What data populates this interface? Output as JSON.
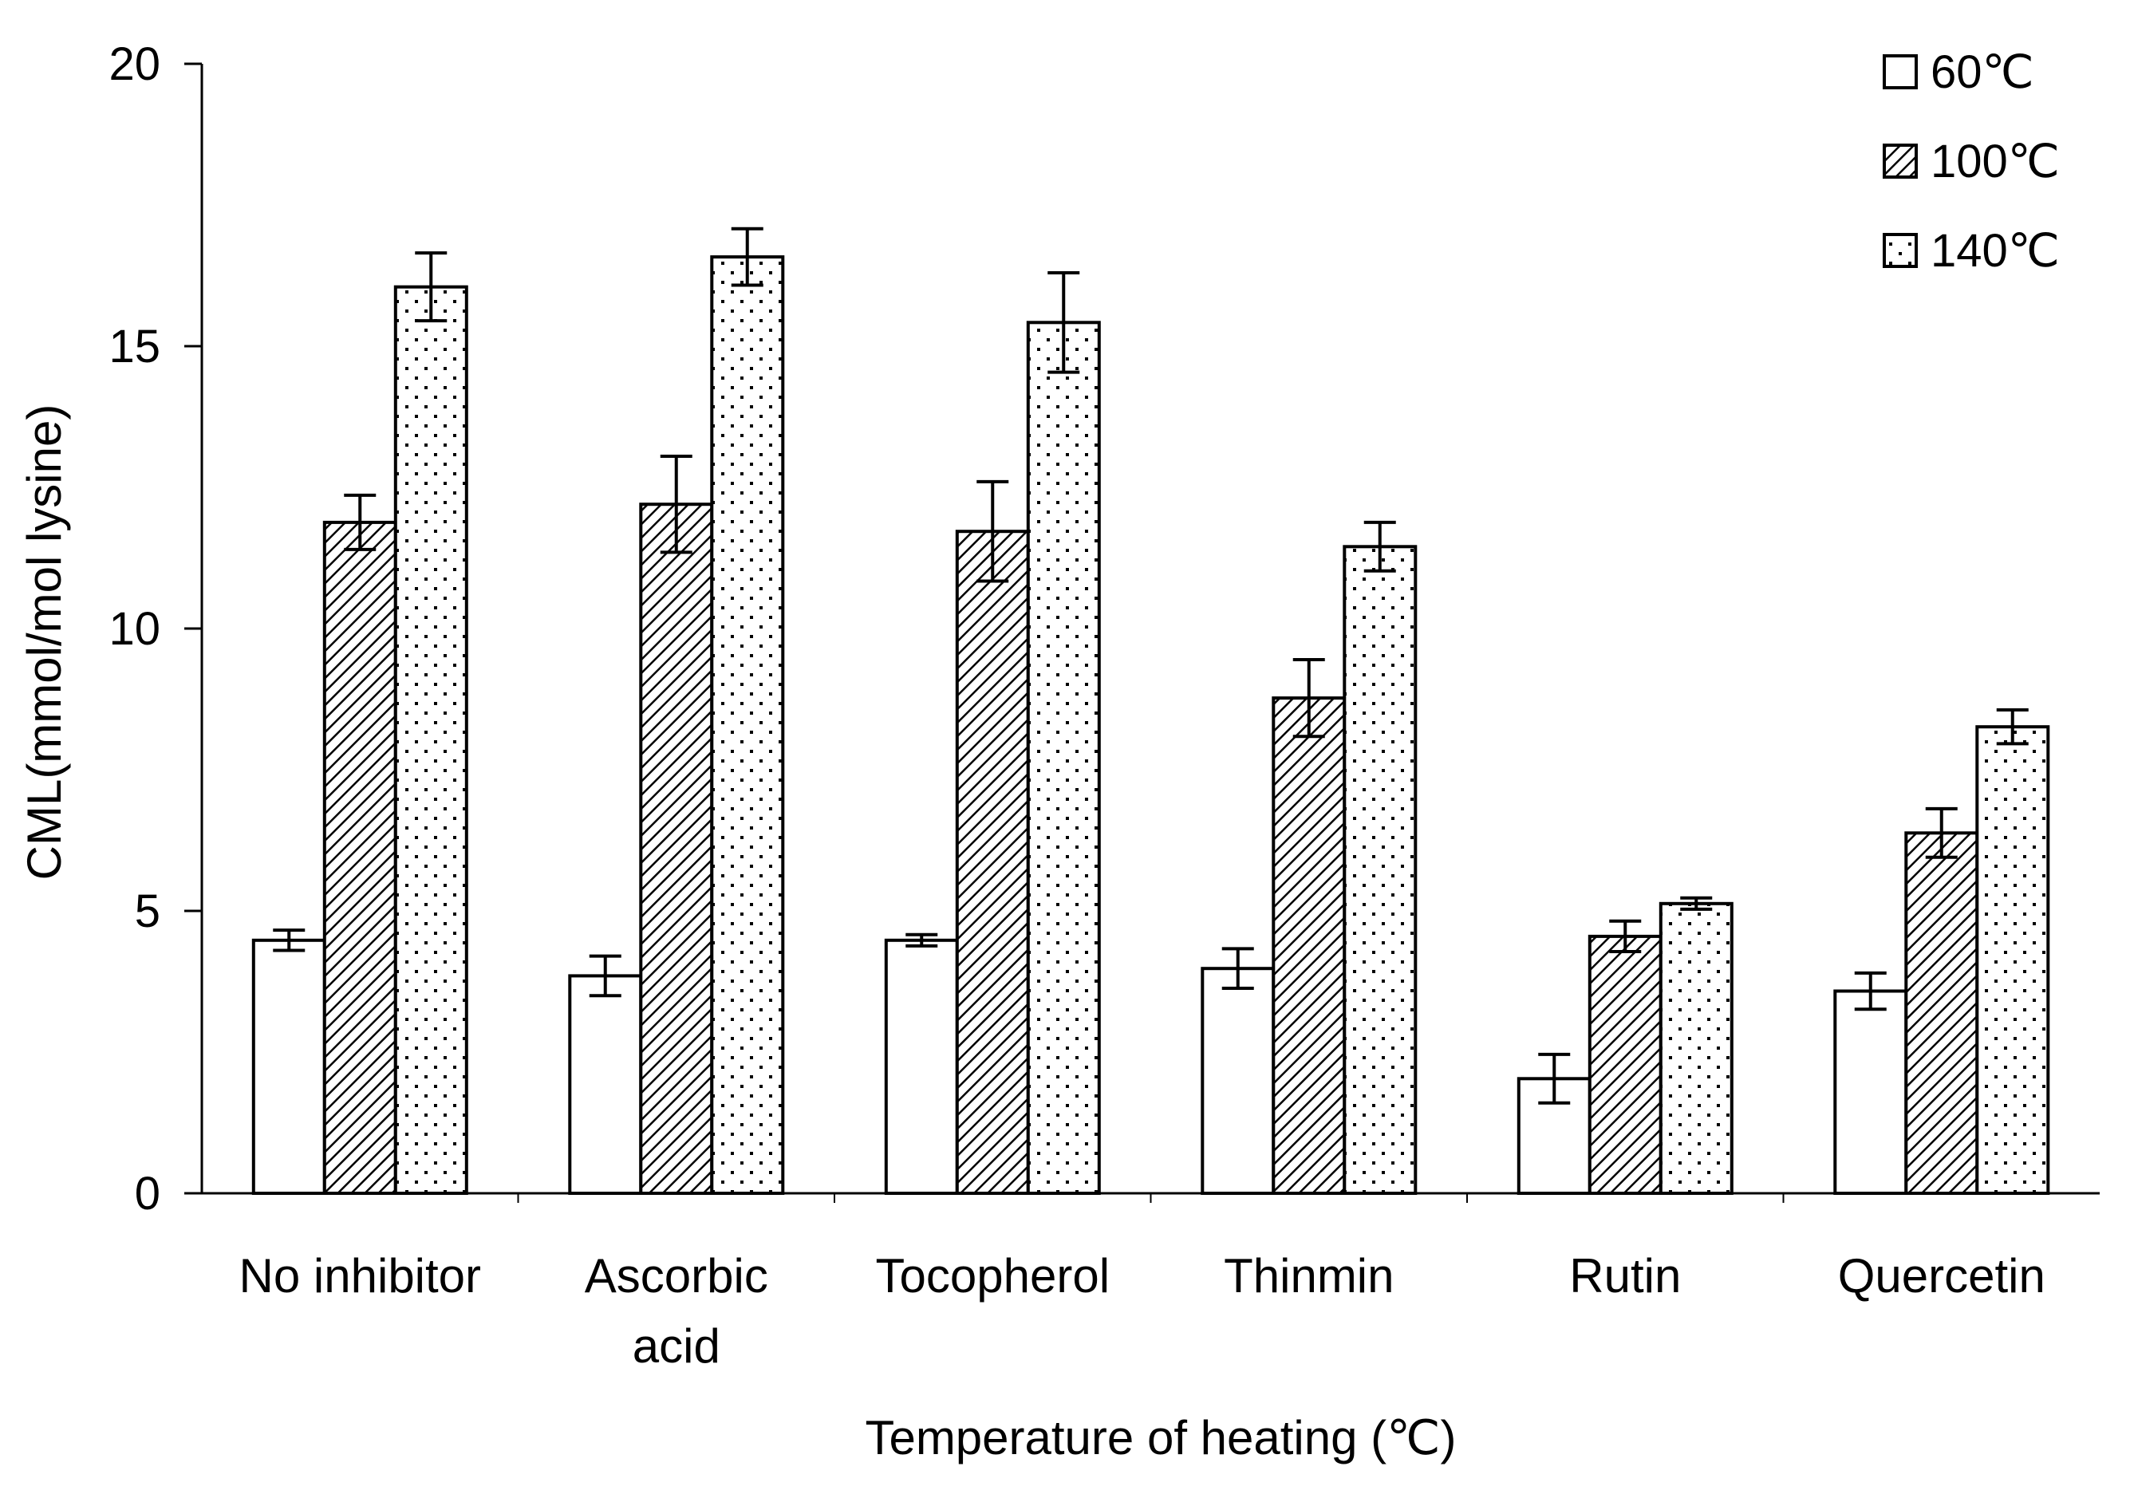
{
  "chart_data": {
    "type": "bar",
    "title": "",
    "xlabel": "Temperature of heating (℃)",
    "ylabel": "CML(mmol/mol lysine)",
    "ylim": [
      0,
      20
    ],
    "yticks": [
      0,
      5,
      10,
      15,
      20
    ],
    "ytick_labels": [
      "0",
      "5",
      "10",
      "15",
      "20"
    ],
    "categories": [
      "No inhibitor",
      "Ascorbic acid",
      "Tocopherol",
      "Thinmin",
      "Rutin",
      "Quercetin"
    ],
    "category_label_lines": [
      [
        "No inhibitor"
      ],
      [
        "Ascorbic",
        "acid"
      ],
      [
        "Tocopherol"
      ],
      [
        "Thinmin"
      ],
      [
        "Rutin"
      ],
      [
        "Quercetin"
      ]
    ],
    "series": [
      {
        "name": "60℃",
        "pattern": "plain",
        "values": [
          4.48,
          3.85,
          4.48,
          3.98,
          2.03,
          3.58
        ],
        "errors": [
          0.18,
          0.35,
          0.1,
          0.35,
          0.43,
          0.32
        ]
      },
      {
        "name": "100℃",
        "pattern": "hatch",
        "values": [
          11.88,
          12.2,
          11.72,
          8.77,
          4.55,
          6.38
        ],
        "errors": [
          0.48,
          0.85,
          0.88,
          0.68,
          0.27,
          0.43
        ]
      },
      {
        "name": "140℃",
        "pattern": "dots",
        "values": [
          16.05,
          16.58,
          15.42,
          11.45,
          5.13,
          8.26
        ],
        "errors": [
          0.6,
          0.5,
          0.88,
          0.43,
          0.1,
          0.3
        ]
      }
    ],
    "legend": {
      "position": "top-right"
    },
    "grid": false,
    "colors": {
      "bar_fill": "#ffffff",
      "line": "#000000"
    }
  }
}
